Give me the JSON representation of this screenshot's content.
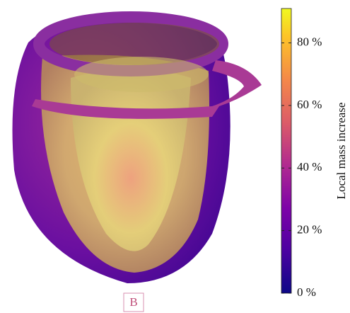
{
  "figure": {
    "panel_label": "B",
    "colorbar": {
      "label": "Local mass increase",
      "lim": [
        0,
        91
      ],
      "ticks": [
        {
          "value": 0,
          "label": "0 %"
        },
        {
          "value": 20,
          "label": "20 %"
        },
        {
          "value": 40,
          "label": "40 %"
        },
        {
          "value": 60,
          "label": "60 %"
        },
        {
          "value": 80,
          "label": "80 %"
        }
      ]
    }
  }
}
